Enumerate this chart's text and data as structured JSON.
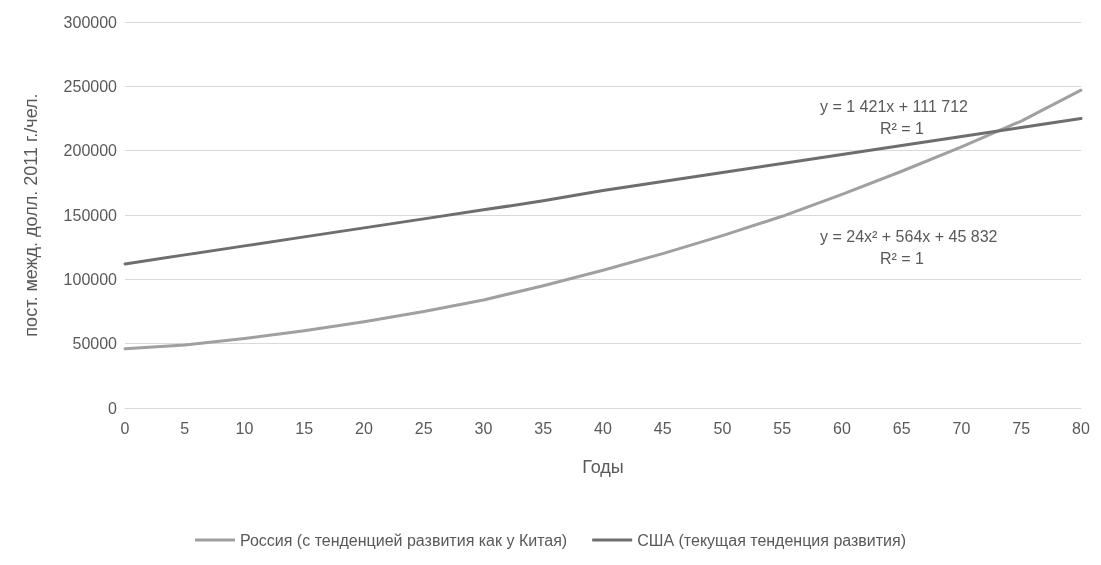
{
  "chart_data": {
    "type": "line",
    "xlabel": "Годы",
    "ylabel": "пост. межд. долл. 2011 г./чел.",
    "x": [
      0,
      5,
      10,
      15,
      20,
      25,
      30,
      35,
      40,
      45,
      50,
      55,
      60,
      65,
      70,
      75,
      80
    ],
    "series": [
      {
        "name": "Россия (с тенденцией развития как у Китая)",
        "color": "#a0a0a0",
        "values": [
          46000,
          49000,
          54000,
          60000,
          67000,
          75000,
          84000,
          95000,
          107000,
          120000,
          134000,
          149000,
          166000,
          184000,
          203000,
          223000,
          247000
        ]
      },
      {
        "name": "США (текущая тенденция развития)",
        "color": "#6e6e6e",
        "values": [
          112000,
          119000,
          126000,
          133000,
          140000,
          147000,
          154000,
          161000,
          169000,
          176000,
          183000,
          190000,
          197000,
          204000,
          211000,
          218000,
          225000
        ]
      }
    ],
    "xlim": [
      0,
      80
    ],
    "xticks": [
      0,
      5,
      10,
      15,
      20,
      25,
      30,
      35,
      40,
      45,
      50,
      55,
      60,
      65,
      70,
      75,
      80
    ],
    "ylim": [
      0,
      300000
    ],
    "yticks": [
      0,
      50000,
      100000,
      150000,
      200000,
      250000,
      300000
    ],
    "grid": "y",
    "legend": "bottom",
    "marker": "none",
    "line_style": "solid",
    "annotations": [
      "y = 1 421x + 111 712",
      "R² = 1",
      "y = 24x² + 564x + 45 832",
      "R² = 1"
    ]
  }
}
